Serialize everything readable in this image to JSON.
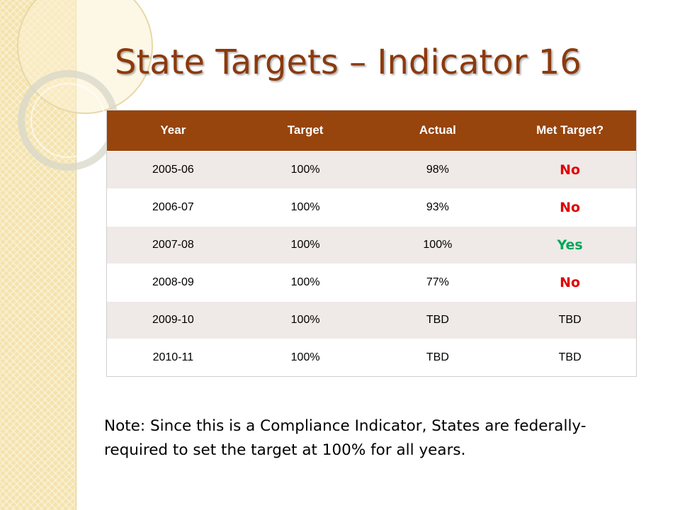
{
  "title": "State Targets – Indicator 16",
  "colors": {
    "title": "#8b3a0e",
    "header_bg": "#97440d",
    "no": "#e00000",
    "yes": "#00a65a",
    "sidebar": "#f5e3ad"
  },
  "table": {
    "headers": [
      "Year",
      "Target",
      "Actual",
      "Met Target?"
    ],
    "rows": [
      [
        "2005-06",
        "100%",
        "98%",
        "No"
      ],
      [
        "2006-07",
        "100%",
        "93%",
        "No"
      ],
      [
        "2007-08",
        "100%",
        "100%",
        "Yes"
      ],
      [
        "2008-09",
        "100%",
        "77%",
        "No"
      ],
      [
        "2009-10",
        "100%",
        "TBD",
        "TBD"
      ],
      [
        "2010-11",
        "100%",
        "TBD",
        "TBD"
      ]
    ]
  },
  "note": "Note:  Since this is a Compliance Indicator,  States are federally-required to set the target at 100% for all years."
}
